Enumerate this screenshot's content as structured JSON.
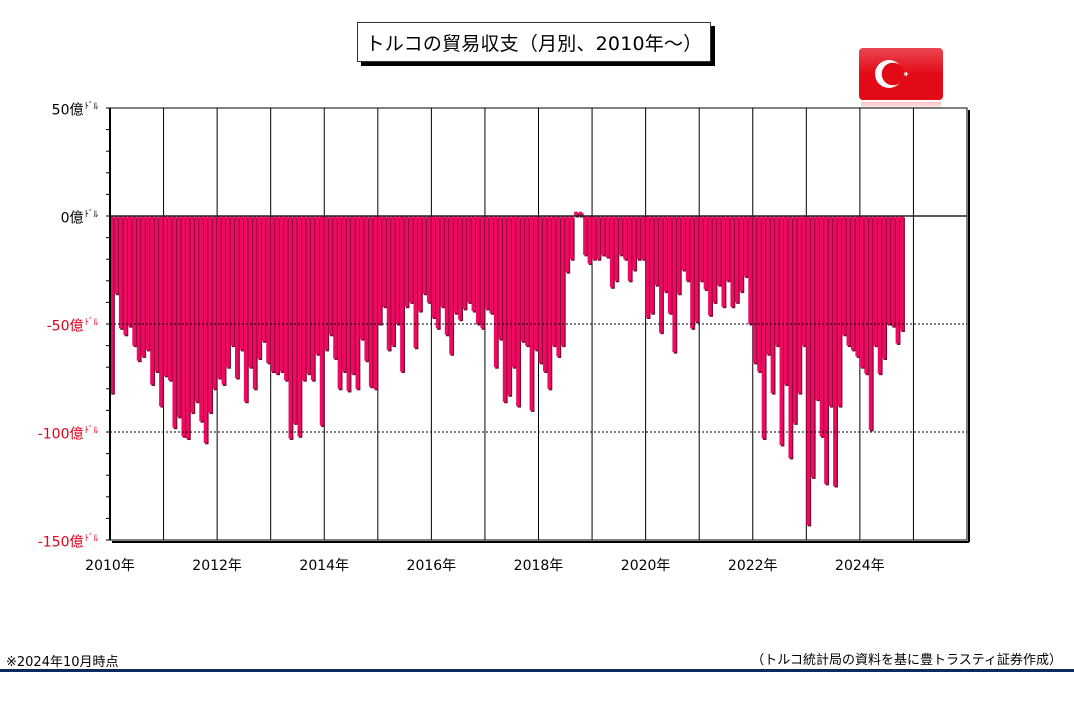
{
  "title": "トルコの貿易収支（月別、2010年～）",
  "note": "※2024年10月時点",
  "source": "（トルコ統計局の資料を基に豊トラスティ証券作成）",
  "colors": {
    "bar": "#ee0a62",
    "bar_shadow": "#7a0a30",
    "negative_label": "#e0001b",
    "flag_red": "#e30a17"
  },
  "flag_icon": "turkey-flag-icon",
  "chart_data": {
    "type": "bar",
    "title": "トルコの貿易収支（月別、2010年～）",
    "y_unit": "億ﾄﾞﾙ",
    "ylim": [
      -150,
      50
    ],
    "y_ticks": [
      {
        "value": 50,
        "label": "50億"
      },
      {
        "value": 0,
        "label": "0億"
      },
      {
        "value": -50,
        "label": "-50億"
      },
      {
        "value": -100,
        "label": "-100億"
      },
      {
        "value": -150,
        "label": "-150億"
      }
    ],
    "x_ticks": [
      "2010年",
      "2012年",
      "2014年",
      "2016年",
      "2018年",
      "2020年",
      "2022年",
      "2024年"
    ],
    "x_range": [
      "2010-01",
      "2025-12"
    ],
    "reference_lines": [
      -50,
      -100
    ],
    "grid": "vertical-yearly",
    "series": [
      {
        "start": "2010-01",
        "values": [
          -82,
          -36,
          -52,
          -55,
          -51,
          -60,
          -67,
          -65,
          -62,
          -78,
          -72,
          -88,
          -74,
          -76,
          -98,
          -93,
          -102,
          -103,
          -91,
          -86,
          -95,
          -105,
          -91,
          -80,
          -75,
          -78,
          -70,
          -60,
          -75,
          -62,
          -86,
          -70,
          -80,
          -66,
          -58,
          -68,
          -72,
          -73,
          -72,
          -76,
          -103,
          -96,
          -102,
          -76,
          -73,
          -76,
          -64,
          -97,
          -62,
          -55,
          -66,
          -80,
          -72,
          -81,
          -73,
          -80,
          -57,
          -67,
          -79,
          -80,
          -50,
          -42,
          -62,
          -60,
          -50,
          -72,
          -42,
          -40,
          -61,
          -44,
          -36,
          -40,
          -47,
          -52,
          -42,
          -55,
          -64,
          -45,
          -48,
          -43,
          -40,
          -44,
          -50,
          -52,
          -43,
          -45,
          -70,
          -57,
          -86,
          -83,
          -70,
          -88,
          -58,
          -60,
          -90,
          -62,
          -68,
          -72,
          -80,
          -60,
          -65,
          -60,
          -26,
          -20,
          2,
          2,
          -18,
          -22,
          -20,
          -20,
          -18,
          -19,
          -33,
          -30,
          -18,
          -20,
          -30,
          -25,
          -20,
          -20,
          -47,
          -45,
          -32,
          -54,
          -35,
          -45,
          -63,
          -36,
          -25,
          -30,
          -52,
          -49,
          -30,
          -34,
          -46,
          -40,
          -32,
          -42,
          -30,
          -42,
          -40,
          -35,
          -28,
          -50,
          -68,
          -72,
          -103,
          -64,
          -82,
          -60,
          -106,
          -78,
          -112,
          -96,
          -82,
          -60,
          -143,
          -121,
          -85,
          -102,
          -124,
          -88,
          -125,
          -88,
          -55,
          -60,
          -62,
          -65,
          -70,
          -73,
          -99,
          -60,
          -73,
          -66,
          -50,
          -51,
          -59,
          -53
        ]
      }
    ]
  }
}
